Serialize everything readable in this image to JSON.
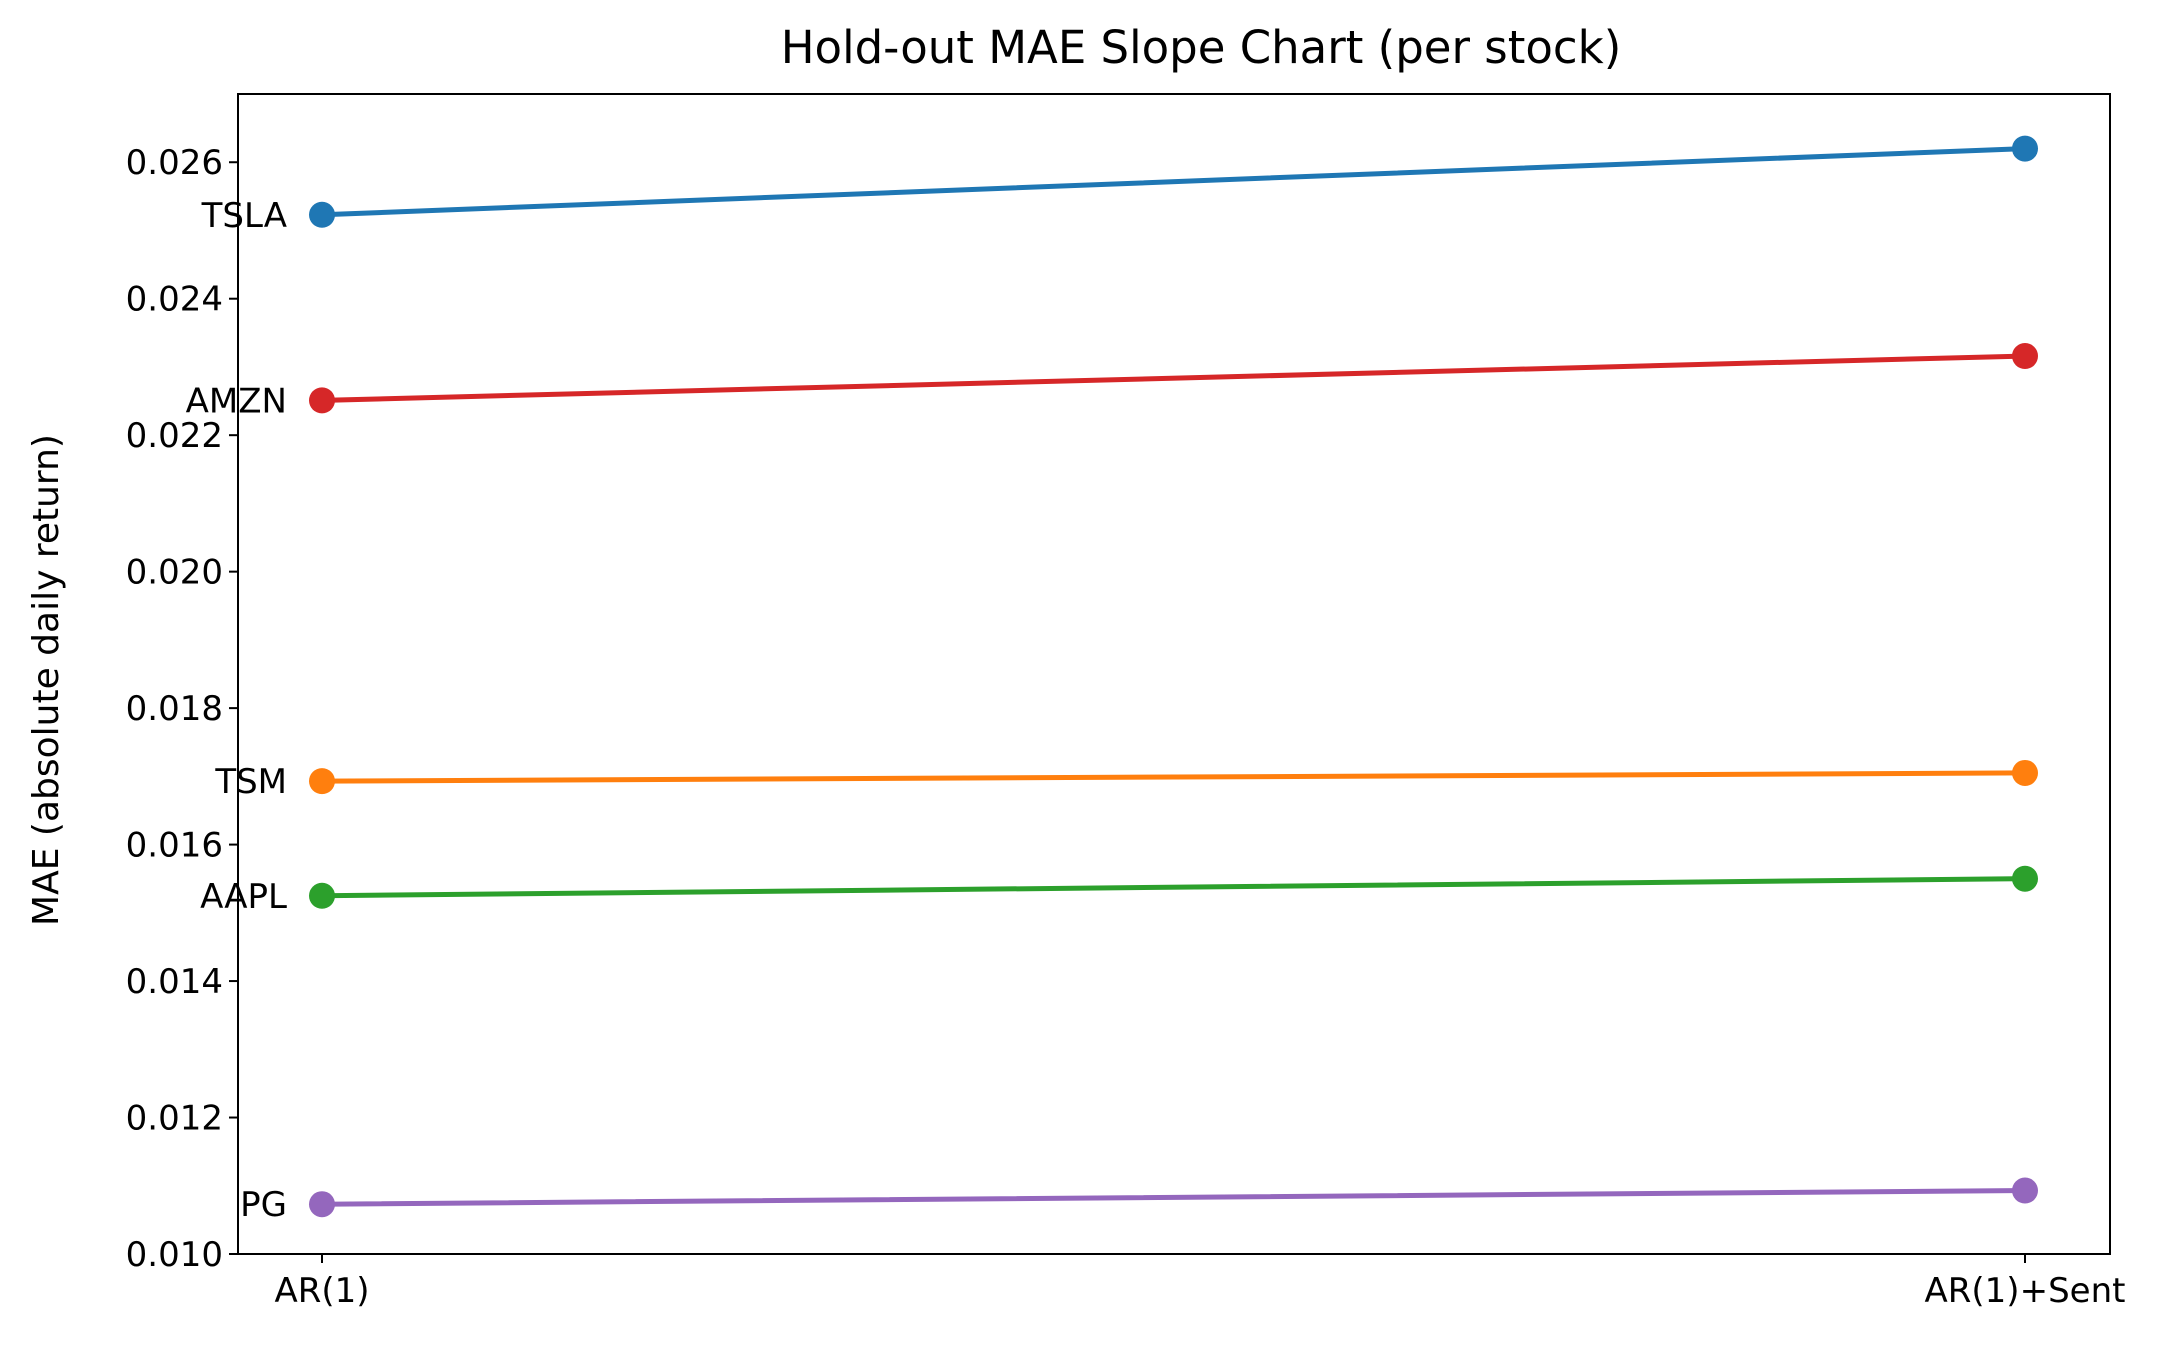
{
  "chart_data": {
    "type": "line",
    "title": "Hold-out MAE Slope Chart (per stock)",
    "xlabel": "",
    "ylabel": "MAE (absolute daily return)",
    "categories": [
      "AR(1)",
      "AR(1)+Sent"
    ],
    "ylim": [
      0.01,
      0.027
    ],
    "yticks": [
      0.01,
      0.012,
      0.014,
      0.016,
      0.018,
      0.02,
      0.022,
      0.024,
      0.026
    ],
    "ytick_labels": [
      "0.010",
      "0.012",
      "0.014",
      "0.016",
      "0.018",
      "0.020",
      "0.022",
      "0.024",
      "0.026"
    ],
    "grid": false,
    "legend": "none",
    "series": [
      {
        "name": "TSLA",
        "values": [
          0.02523,
          0.0262
        ],
        "color": "#1f77b4"
      },
      {
        "name": "AMZN",
        "values": [
          0.02251,
          0.02316
        ],
        "color": "#d62728"
      },
      {
        "name": "TSM",
        "values": [
          0.01693,
          0.01705
        ],
        "color": "#ff7f0e"
      },
      {
        "name": "AAPL",
        "values": [
          0.01525,
          0.0155
        ],
        "color": "#2ca02c"
      },
      {
        "name": "PG",
        "values": [
          0.01073,
          0.01093
        ],
        "color": "#9467bd"
      }
    ]
  }
}
